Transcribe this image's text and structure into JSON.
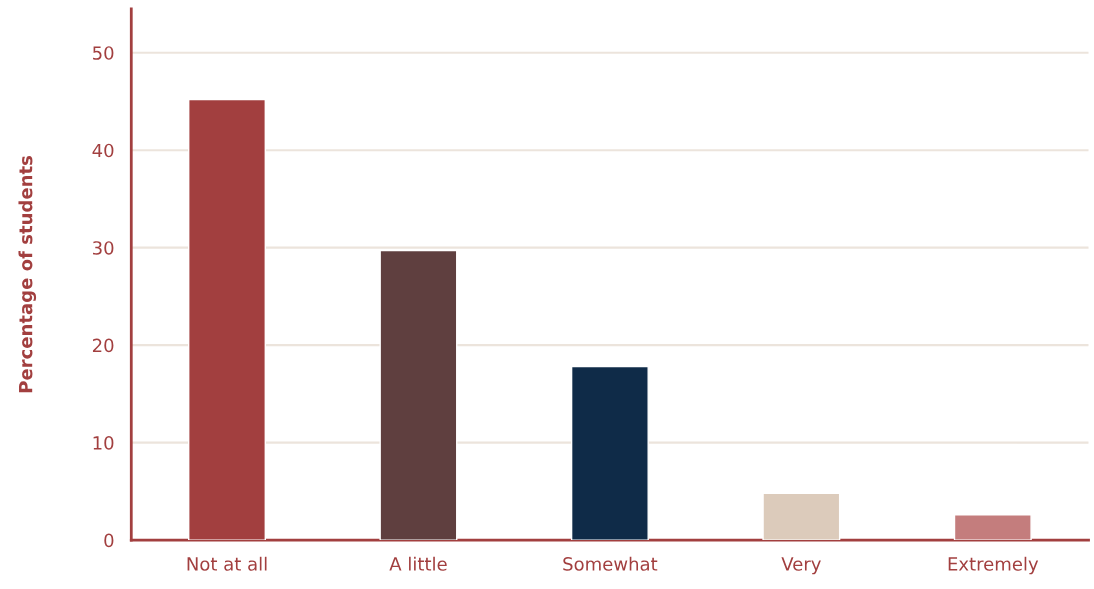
{
  "chart_data": {
    "type": "bar",
    "ylabel": "Percentage of students",
    "categories": [
      "Not at all",
      "A little",
      "Somewhat",
      "Very",
      "Extremely"
    ],
    "values": [
      45.2,
      29.7,
      17.8,
      4.8,
      2.6
    ],
    "colors": [
      "#a23f3f",
      "#5f3f3f",
      "#0f2b48",
      "#dccbbb",
      "#c47d7d"
    ],
    "ylim": [
      0,
      54.5
    ],
    "yticks": [
      0,
      10,
      20,
      30,
      40,
      50
    ],
    "grid": "y"
  }
}
